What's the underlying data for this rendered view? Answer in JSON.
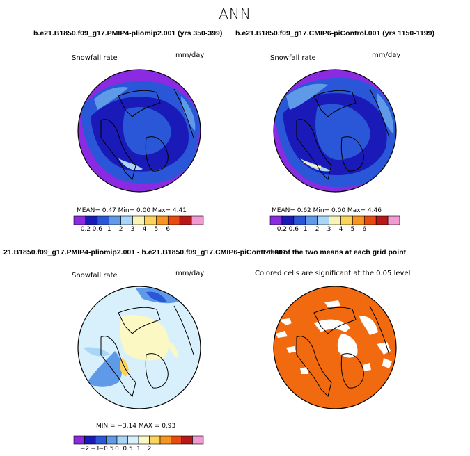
{
  "figure": {
    "title": "ANN",
    "case_left": "b.e21.B1850.f09_g17.PMIP4-pliomip2.001 (yrs 350-399)",
    "case_right": "b.e21.B1850.f09_g17.CMIP6-piControl.001 (yrs 1150-1199)",
    "diff_title": "21.B1850.f09_g17.PMIP4-pliomip2.001 - b.e21.B1850.f09_g17.CMIP6-piControl.001",
    "ttest_title": "T-test of the two means at each grid point"
  },
  "panels": {
    "top_left": {
      "variable": "Snowfall rate",
      "units": "mm/day",
      "stats": "MEAN=    0.47   Min=    0.00   Max=    4.41"
    },
    "top_right": {
      "variable": "Snowfall rate",
      "units": "mm/day",
      "stats": "MEAN=    0.62   Min=    0.00   Max=    4.46"
    },
    "bottom_left": {
      "variable": "Snowfall rate",
      "units": "mm/day",
      "stats": "MIN =  −3.14  MAX =    0.93"
    },
    "bottom_right": {
      "note": "Colored cells are significant at the 0.05 level"
    }
  },
  "colorbars": {
    "absolute": {
      "colors": [
        "#8a2be2",
        "#1a1ab8",
        "#2a57d8",
        "#5f9ae8",
        "#a9d6f7",
        "#f8f4b8",
        "#fcd35a",
        "#f89420",
        "#e84a10",
        "#b81818",
        "#f09ad0"
      ],
      "ticks": [
        "0.2",
        "0.6",
        "1",
        "2",
        "3",
        "4",
        "5",
        "6"
      ]
    },
    "difference": {
      "colors": [
        "#8a2be2",
        "#1a1ab8",
        "#2a57d8",
        "#5f9ae8",
        "#a9d6f7",
        "#d8f0fc",
        "#fbf8c4",
        "#fcd35a",
        "#f89420",
        "#e84a10",
        "#b81818",
        "#f09ad0"
      ],
      "ticks": [
        "−2",
        "−1",
        "−0.5",
        "0",
        "0.5",
        "1",
        "2"
      ]
    }
  },
  "map_colors": {
    "land_outline": "#000000",
    "ttest_fill": "#f26a10"
  }
}
